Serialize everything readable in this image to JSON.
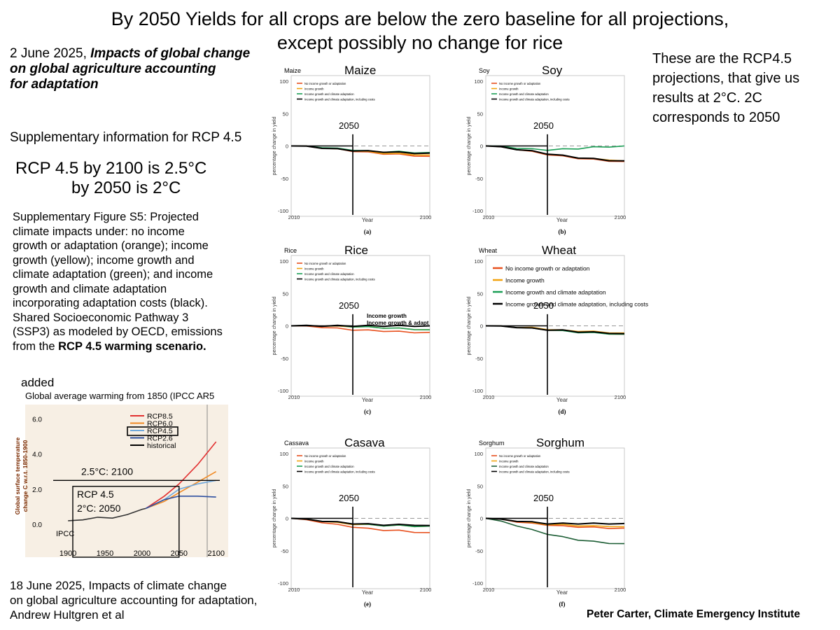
{
  "title": {
    "line1": "By 2050 Yields for all crops are below the zero baseline for all projections,",
    "line2": "except possibly no change for rice"
  },
  "left": {
    "ref_date": "2 June 2025, ",
    "ref_title_1": "Impacts of global change",
    "ref_title_2": "on global agriculture accounting",
    "ref_title_3": "for adaptation",
    "supp": "Supplementary information for RCP 4.5",
    "rcp_line1": "RCP 4.5 by 2100 is 2.5°C",
    "rcp_line2": "by 2050 is 2°C",
    "caption_lines": [
      "Supplementary Figure S5: Projected",
      "climate impacts under: no income",
      "growth or adaptation (orange); income",
      "growth (yellow); income growth and",
      "climate adaptation (green); and income",
      "growth and climate adaptation",
      "incorporating adaptation costs (black).",
      "Shared Socioeconomic Pathway 3",
      "(SSP3) as modeled by OECD, emissions"
    ],
    "caption_last_prefix": "from the ",
    "caption_last_bold": "RCP 4.5 warming scenario.",
    "added": "added",
    "footer_lines": [
      "18 June 2025, Impacts of climate change",
      "on global agriculture accounting for adaptation,",
      "Andrew Hultgren et al"
    ]
  },
  "right": {
    "note_lines": [
      "These are the RCP4.5",
      "projections, that give us",
      "results at 2°C. 2C",
      "corresponds to 2050"
    ],
    "credit": "Peter Carter, Climate Emergency Institute"
  },
  "colors": {
    "orange": "#e8501e",
    "yellow": "#f2a30f",
    "green": "#1a9e55",
    "green_dark": "#1d5e35",
    "black": "#000000"
  },
  "chart_data": [
    {
      "id": "maize",
      "type": "line",
      "small_label": "Maize",
      "big_label": "Maize",
      "letter": "(a)",
      "x": [
        2010,
        2020,
        2030,
        2040,
        2050,
        2060,
        2070,
        2080,
        2090,
        2100
      ],
      "ylim": [
        -100,
        100
      ],
      "yticks": [
        100,
        50,
        0,
        -50,
        -100
      ],
      "xtick_labels": [
        "2010",
        "2100"
      ],
      "ylabel": "percentage change in yield",
      "xlabel": "Year",
      "marker_year": 2050,
      "marker_label": "2050",
      "legend": [
        "No income growth or adaptation",
        "Income growth",
        "Income growth and climate adaptation",
        "Income growth and climate adaptation, including costs"
      ],
      "series": [
        {
          "name": "No income growth or adaptation",
          "color": "orange",
          "values": [
            0,
            -1,
            -3,
            -5,
            -8,
            -10,
            -12,
            -13,
            -15,
            -16
          ]
        },
        {
          "name": "Income growth",
          "color": "yellow",
          "values": [
            0,
            -1,
            -3,
            -5,
            -7,
            -9,
            -11,
            -12,
            -13,
            -14
          ]
        },
        {
          "name": "Income growth and climate adaptation",
          "color": "green",
          "values": [
            0,
            -1,
            -2,
            -4,
            -6,
            -8,
            -9,
            -9,
            -10,
            -10
          ]
        },
        {
          "name": "Income growth and climate adaptation, including costs",
          "color": "black",
          "values": [
            0,
            -1,
            -3,
            -5,
            -7,
            -8,
            -9,
            -10,
            -11,
            -11
          ]
        }
      ]
    },
    {
      "id": "soy",
      "type": "line",
      "small_label": "Soy",
      "big_label": "Soy",
      "letter": "(b)",
      "x": [
        2010,
        2020,
        2030,
        2040,
        2050,
        2060,
        2070,
        2080,
        2090,
        2100
      ],
      "ylim": [
        -100,
        100
      ],
      "yticks": [
        100,
        50,
        0,
        -50,
        -100
      ],
      "xtick_labels": [
        "2010",
        "2100"
      ],
      "ylabel": "percentage change in yield",
      "xlabel": "Year",
      "marker_year": 2050,
      "marker_label": "2050",
      "legend": [
        "No income growth or adaptation",
        "Income growth",
        "Income growth and climate adaptation",
        "Income growth and climate adaptation, including costs"
      ],
      "series": [
        {
          "name": "No income growth or adaptation",
          "color": "orange",
          "values": [
            0,
            -2,
            -5,
            -9,
            -13,
            -16,
            -19,
            -21,
            -23,
            -24
          ]
        },
        {
          "name": "Income growth",
          "color": "yellow",
          "values": [
            0,
            -2,
            -5,
            -8,
            -12,
            -15,
            -18,
            -20,
            -21,
            -23
          ]
        },
        {
          "name": "Income growth and climate adaptation",
          "color": "green",
          "values": [
            0,
            -1,
            -3,
            -5,
            -6,
            -5,
            -4,
            -2,
            -1,
            0
          ]
        },
        {
          "name": "Income growth and climate adaptation, including costs",
          "color": "black",
          "values": [
            0,
            -2,
            -5,
            -8,
            -12,
            -15,
            -18,
            -20,
            -22,
            -23
          ]
        }
      ]
    },
    {
      "id": "rice",
      "type": "line",
      "small_label": "Rice",
      "big_label": "Rice",
      "letter": "(c)",
      "x": [
        2010,
        2020,
        2030,
        2040,
        2050,
        2060,
        2070,
        2080,
        2090,
        2100
      ],
      "ylim": [
        -100,
        100
      ],
      "yticks": [
        100,
        50,
        0,
        -50,
        -100
      ],
      "xtick_labels": [
        "2010",
        "2100"
      ],
      "ylabel": "percentage change in yield",
      "xlabel": "Year",
      "marker_year": 2050,
      "marker_label": "2050",
      "annot_line1": "Income growth",
      "annot_line2": "Income growth & adapt",
      "legend": [
        "No income growth or adaptation",
        "Income growth",
        "Income growth and climate adaptation",
        "Income growth and climate adaptation, including costs"
      ],
      "series": [
        {
          "name": "No income growth or adaptation",
          "color": "orange",
          "values": [
            0,
            -1,
            -2,
            -4,
            -6,
            -7,
            -8,
            -9,
            -10,
            -10
          ]
        },
        {
          "name": "Income growth",
          "color": "yellow",
          "values": [
            0,
            0,
            0,
            -1,
            -1,
            -2,
            -3,
            -4,
            -5,
            -6
          ]
        },
        {
          "name": "Income growth and climate adaptation",
          "color": "green",
          "values": [
            0,
            0,
            0,
            0,
            -1,
            -2,
            -3,
            -4,
            -5,
            -6
          ]
        },
        {
          "name": "Income growth and climate adaptation, including costs",
          "color": "black",
          "values": [
            0,
            0,
            0,
            0,
            0,
            0,
            0,
            0,
            0,
            0
          ]
        }
      ]
    },
    {
      "id": "wheat",
      "type": "line",
      "small_label": "Wheat",
      "big_label": "Wheat",
      "letter": "(d)",
      "x": [
        2010,
        2020,
        2030,
        2040,
        2050,
        2060,
        2070,
        2080,
        2090,
        2100
      ],
      "ylim": [
        -100,
        100
      ],
      "yticks": [
        100,
        50,
        0,
        -50,
        -100
      ],
      "xtick_labels": [
        "2010",
        "2100"
      ],
      "ylabel": "percentage change in yield",
      "xlabel": "Year",
      "marker_year": 2050,
      "marker_label": "2050",
      "legend_large": true,
      "legend": [
        "No income growth or adaptation",
        "Income growth",
        "Income growth and climate adaptation",
        "Income growth and climate adaptation, including costs"
      ],
      "series": [
        {
          "name": "No income growth or adaptation",
          "color": "orange",
          "values": [
            0,
            -1,
            -2,
            -4,
            -6,
            -8,
            -9,
            -10,
            -12,
            -13
          ]
        },
        {
          "name": "Income growth",
          "color": "yellow",
          "values": [
            0,
            -1,
            -2,
            -3,
            -5,
            -7,
            -8,
            -9,
            -10,
            -11
          ]
        },
        {
          "name": "Income growth and climate adaptation",
          "color": "green",
          "values": [
            0,
            -1,
            -2,
            -4,
            -6,
            -8,
            -10,
            -11,
            -12,
            -13
          ]
        },
        {
          "name": "Income growth and climate adaptation, including costs",
          "color": "black",
          "values": [
            0,
            -1,
            -2,
            -4,
            -6,
            -7,
            -9,
            -10,
            -11,
            -12
          ]
        }
      ]
    },
    {
      "id": "cassava",
      "type": "line",
      "small_label": "Cassava",
      "big_label": "Casava",
      "letter": "(e)",
      "x": [
        2010,
        2020,
        2030,
        2040,
        2050,
        2060,
        2070,
        2080,
        2090,
        2100
      ],
      "ylim": [
        -100,
        100
      ],
      "yticks": [
        100,
        50,
        0,
        -50,
        -100
      ],
      "xtick_labels": [
        "2010",
        "2100"
      ],
      "ylabel": "percentage change in yield",
      "xlabel": "Year",
      "marker_year": 2050,
      "marker_label": "2050",
      "legend": [
        "No income growth or adaptation",
        "Income growth",
        "Income growth and climate adaptation",
        "Income growth and climate adaptation, including costs"
      ],
      "series": [
        {
          "name": "No income growth or adaptation",
          "color": "orange",
          "values": [
            0,
            -3,
            -6,
            -10,
            -13,
            -16,
            -18,
            -19,
            -21,
            -22
          ]
        },
        {
          "name": "Income growth",
          "color": "yellow",
          "values": [
            0,
            -2,
            -4,
            -7,
            -9,
            -10,
            -11,
            -11,
            -12,
            -12
          ]
        },
        {
          "name": "Income growth and climate adaptation",
          "color": "green",
          "values": [
            0,
            -2,
            -4,
            -6,
            -8,
            -10,
            -11,
            -11,
            -12,
            -12
          ]
        },
        {
          "name": "Income growth and climate adaptation, including costs",
          "color": "black",
          "values": [
            0,
            -2,
            -4,
            -6,
            -8,
            -9,
            -10,
            -10,
            -10,
            -11
          ]
        }
      ]
    },
    {
      "id": "sorghum",
      "type": "line",
      "small_label": "Sorghum",
      "big_label": "Sorghum",
      "letter": "(f)",
      "x": [
        2010,
        2020,
        2030,
        2040,
        2050,
        2060,
        2070,
        2080,
        2090,
        2100
      ],
      "ylim": [
        -100,
        100
      ],
      "yticks": [
        100,
        50,
        0,
        -50,
        -100
      ],
      "xtick_labels": [
        "2010",
        "2100"
      ],
      "ylabel": "percentage change in yield",
      "xlabel": "Year",
      "marker_year": 2050,
      "marker_label": "2050",
      "legend": [
        "No income growth or adaptation",
        "Income growth",
        "Income growth and climate adaptation",
        "Income growth and climate adaptation, including costs"
      ],
      "series": [
        {
          "name": "No income growth or adaptation",
          "color": "orange",
          "values": [
            0,
            -2,
            -5,
            -8,
            -10,
            -12,
            -13,
            -14,
            -15,
            -15
          ]
        },
        {
          "name": "Income growth",
          "color": "yellow",
          "values": [
            0,
            -2,
            -4,
            -7,
            -9,
            -10,
            -11,
            -12,
            -12,
            -13
          ]
        },
        {
          "name": "Income growth and climate adaptation",
          "color": "green_dark",
          "values": [
            0,
            -5,
            -11,
            -18,
            -24,
            -29,
            -33,
            -36,
            -38,
            -39
          ]
        },
        {
          "name": "Income growth and climate adaptation, including costs",
          "color": "black",
          "values": [
            0,
            -2,
            -4,
            -6,
            -8,
            -8,
            -8,
            -8,
            -8,
            -8
          ]
        }
      ]
    },
    {
      "id": "ipcc",
      "type": "line",
      "title": "Global average warming from 1850  (IPCC AR5",
      "ylabel_line1": "Global surface temperature",
      "ylabel_line2": "change C w.r.t. 1850-1900",
      "yticks": [
        6.0,
        4.0,
        2.0,
        0.0
      ],
      "ytick_labels": [
        "6.0",
        "4.0",
        "2.0",
        "0.0"
      ],
      "xticks": [
        1900,
        1950,
        2000,
        2050,
        2100
      ],
      "xtick_labels": [
        "1900",
        "1950",
        "2000",
        "2050",
        "2100"
      ],
      "xlim": [
        1880,
        2105
      ],
      "ylim": [
        -1.0,
        6.5
      ],
      "legend": [
        "RCP8.5",
        "RCP6.0",
        "RCP4.5",
        "RCP2.6",
        "historical"
      ],
      "annot_2100": "2.5°C: 2100",
      "annot_rcp": "RCP 4.5",
      "annot_2050": "2°C: 2050",
      "source": "IPCC",
      "levels": {
        "y2100": 2.5,
        "y2050": 2.0,
        "year2050": 2050
      },
      "series": [
        {
          "name": "historical",
          "color": "#333333",
          "x": [
            1900,
            1920,
            1940,
            1960,
            1980,
            2000,
            2005
          ],
          "y": [
            0.2,
            0.25,
            0.4,
            0.35,
            0.55,
            0.85,
            0.9
          ]
        },
        {
          "name": "RCP8.5",
          "color": "#e23030",
          "x": [
            2005,
            2030,
            2050,
            2075,
            2100
          ],
          "y": [
            0.9,
            1.6,
            2.3,
            3.4,
            4.7
          ]
        },
        {
          "name": "RCP6.0",
          "color": "#f08a24",
          "x": [
            2005,
            2030,
            2050,
            2075,
            2100
          ],
          "y": [
            0.9,
            1.3,
            1.8,
            2.4,
            3.0
          ]
        },
        {
          "name": "RCP4.5",
          "color": "#6fa8dc",
          "x": [
            2005,
            2030,
            2050,
            2075,
            2100
          ],
          "y": [
            0.9,
            1.4,
            2.0,
            2.3,
            2.5
          ]
        },
        {
          "name": "RCP2.6",
          "color": "#2d4fa0",
          "x": [
            2005,
            2030,
            2050,
            2075,
            2100
          ],
          "y": [
            0.9,
            1.4,
            1.6,
            1.6,
            1.55
          ]
        }
      ]
    }
  ]
}
